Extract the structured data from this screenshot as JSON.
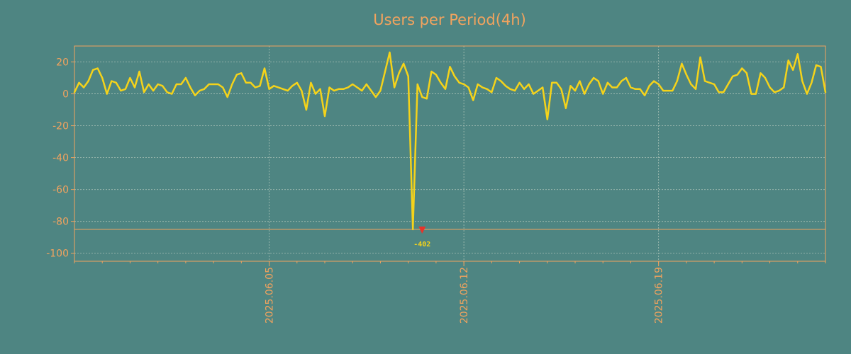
{
  "chart_data": {
    "type": "line",
    "title": "Users per Period(4h)",
    "xlabel": "",
    "ylabel": "",
    "ylim": [
      -105,
      30
    ],
    "yticks": [
      20,
      0,
      -20,
      -40,
      -60,
      -80,
      -100
    ],
    "ytick_labels": [
      "20",
      "0",
      "-20",
      "-40",
      "-60",
      "-80",
      "-100"
    ],
    "x_start": "2025-05-29",
    "x_end": "2025-06-25",
    "xticks": [
      "2025-06-05",
      "2025-06-12",
      "2025-06-19"
    ],
    "xtick_labels": [
      "2025.06.05",
      "2025.06.12",
      "2025.06.19"
    ],
    "grid": true,
    "threshold_line": -85,
    "annotation": {
      "label": "-402",
      "x": "2025-06-10 12:00",
      "actual_value": -402
    },
    "colors": {
      "background": "#4e8582",
      "line": "#f5d31a",
      "axes": "#f2a35e",
      "grid": "#a9c1b6",
      "marker": "#e8332a"
    },
    "series": [
      {
        "values": [
          1,
          7,
          4,
          8,
          15,
          16,
          10,
          0,
          8,
          7,
          2,
          3,
          10,
          4,
          14,
          1,
          6,
          2,
          6,
          5,
          1,
          0,
          6,
          6,
          10,
          4,
          -1,
          2,
          3,
          6,
          6,
          6,
          4,
          -2,
          6,
          12,
          13,
          7,
          7,
          4,
          5,
          16,
          3,
          5,
          4,
          3,
          2,
          5,
          7,
          2,
          -10,
          7,
          0,
          3,
          -14,
          4,
          2,
          3,
          3,
          4,
          6,
          4,
          2,
          6,
          2,
          -2,
          2,
          14,
          26,
          4,
          13,
          19,
          11,
          -85,
          6,
          -2,
          -3,
          14,
          12,
          7,
          3,
          17,
          11,
          7,
          6,
          4,
          -4,
          6,
          4,
          3,
          1,
          10,
          8,
          5,
          3,
          2,
          7,
          3,
          6,
          0,
          2,
          4,
          -16,
          7,
          7,
          3,
          -9,
          5,
          2,
          8,
          0,
          6,
          10,
          8,
          0,
          7,
          4,
          4,
          8,
          10,
          4,
          3,
          3,
          -1,
          5,
          8,
          6,
          2,
          2,
          2,
          8,
          19,
          12,
          6,
          3,
          23,
          8,
          7,
          6,
          1,
          1,
          6,
          11,
          12,
          16,
          13,
          0,
          0,
          13,
          10,
          4,
          1,
          2,
          4,
          21,
          15,
          25,
          8,
          0,
          7,
          18,
          17,
          1
        ]
      }
    ]
  }
}
